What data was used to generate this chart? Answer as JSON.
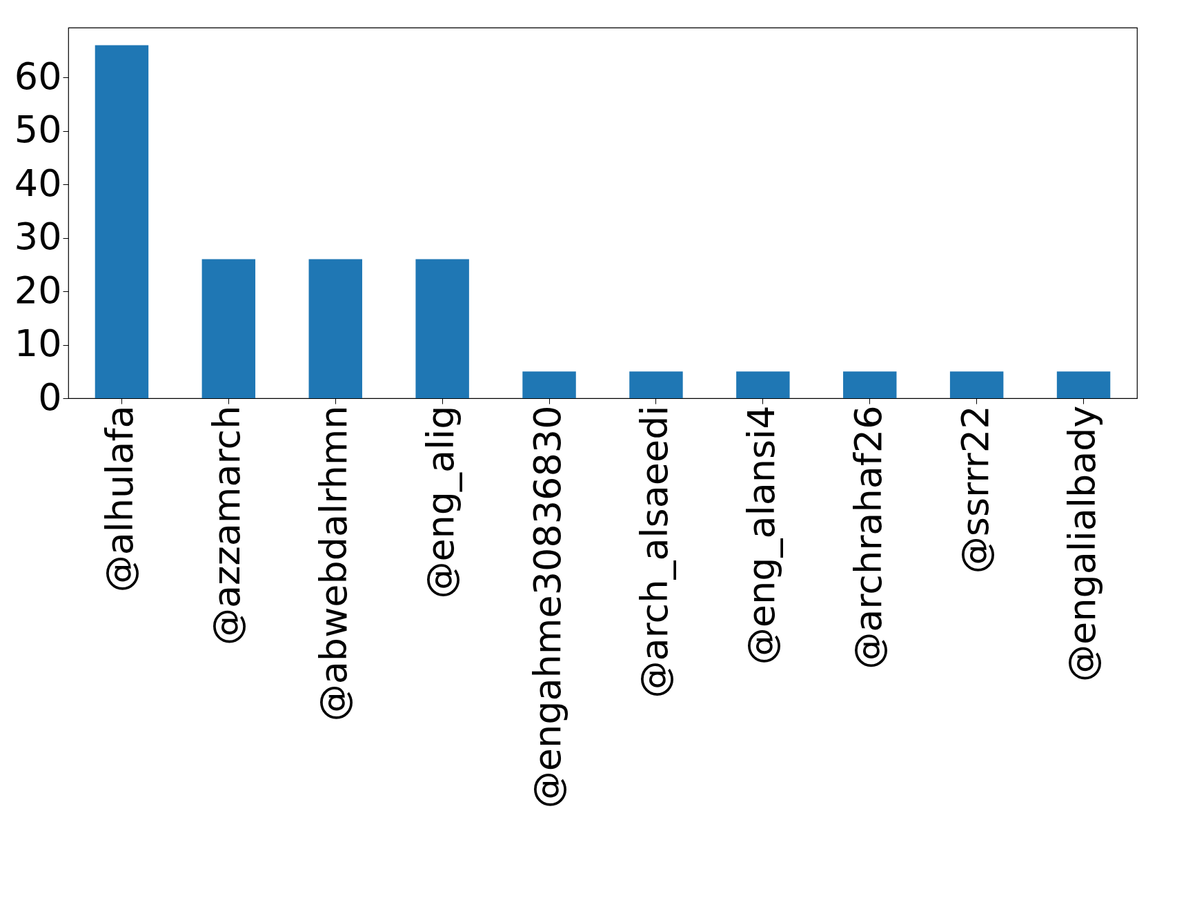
{
  "chart_data": {
    "type": "bar",
    "categories": [
      "@alhulafa",
      "@azzamarch",
      "@abwebdalrhmn",
      "@eng_alig",
      "@engahme30836830",
      "@arch_alsaeedi",
      "@eng_alansi4",
      "@archrahaf26",
      "@ssrrr22",
      "@engalialbady"
    ],
    "values": [
      66,
      26,
      26,
      26,
      5,
      5,
      5,
      5,
      5,
      5
    ],
    "color": "#1f77b4",
    "ylim": [
      0,
      69.3
    ],
    "yticks": [
      0,
      10,
      20,
      30,
      40,
      50,
      60
    ],
    "grid": false
  }
}
